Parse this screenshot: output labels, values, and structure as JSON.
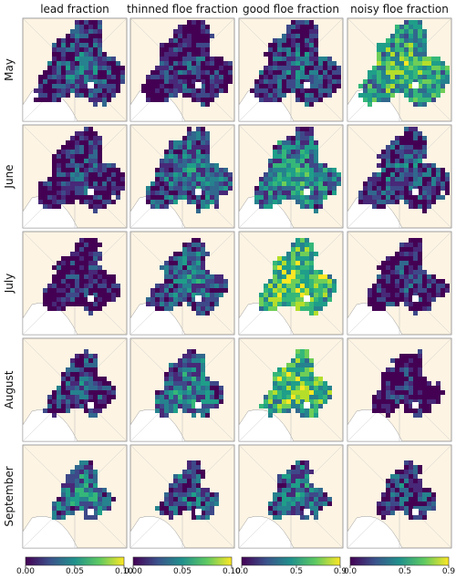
{
  "columns": [
    "lead fraction",
    "thinned floe fraction",
    "good floe fraction",
    "noisy floe fraction"
  ],
  "rows": [
    "May",
    "June",
    "July",
    "August",
    "September"
  ],
  "colorbars": [
    {
      "lim": [
        0,
        0.1
      ],
      "ticks": [
        {
          "value": 0,
          "label": "0.00"
        },
        {
          "value": 0.05,
          "label": "0.05"
        },
        {
          "value": 0.1,
          "label": "0.10"
        }
      ]
    },
    {
      "lim": [
        0,
        0.1
      ],
      "ticks": [
        {
          "value": 0,
          "label": "0.00"
        },
        {
          "value": 0.05,
          "label": "0.05"
        },
        {
          "value": 0.1,
          "label": "0.10"
        }
      ]
    },
    {
      "lim": [
        0,
        0.9
      ],
      "ticks": [
        {
          "value": 0,
          "label": "0.0"
        },
        0.5,
        0.9
      ]
    },
    {
      "lim": [
        0,
        0.9
      ],
      "ticks": [
        {
          "value": 0,
          "label": "0.0"
        },
        0.5,
        0.9
      ]
    }
  ]
}
